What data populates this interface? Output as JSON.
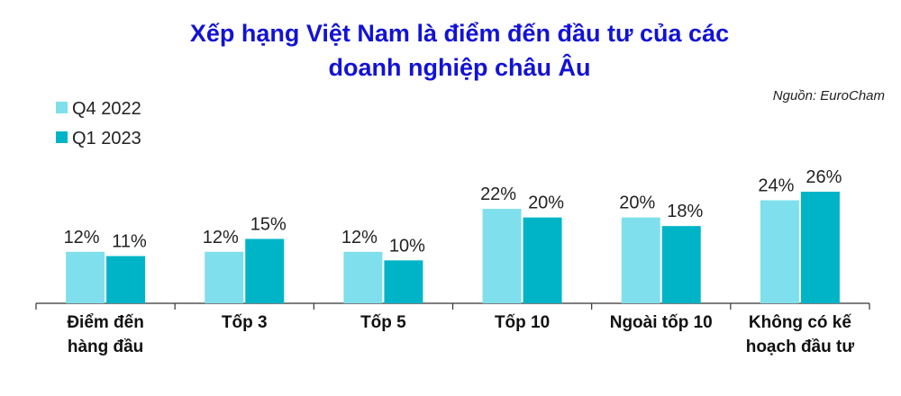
{
  "chart_data": {
    "type": "bar",
    "title": "Xếp hạng Việt Nam là điểm đến đầu tư của các\ndoanh nghiệp châu Âu",
    "source": "Nguồn: EuroCham",
    "categories": [
      "Điểm đến\nhàng đầu",
      "Tốp 3",
      "Tốp 5",
      "Tốp 10",
      "Ngoài tốp 10",
      "Không có kế\nhoạch đầu tư"
    ],
    "series": [
      {
        "name": "Q4 2022",
        "color": "#7fdfec",
        "values": [
          12,
          12,
          12,
          22,
          20,
          24
        ],
        "value_labels": [
          "12%",
          "12%",
          "12%",
          "22%",
          "20%",
          "24%"
        ]
      },
      {
        "name": "Q1 2023",
        "color": "#00b4c8",
        "values": [
          11,
          15,
          10,
          20,
          18,
          26
        ],
        "value_labels": [
          "11%",
          "15%",
          "10%",
          "20%",
          "18%",
          "26%"
        ]
      }
    ]
  }
}
